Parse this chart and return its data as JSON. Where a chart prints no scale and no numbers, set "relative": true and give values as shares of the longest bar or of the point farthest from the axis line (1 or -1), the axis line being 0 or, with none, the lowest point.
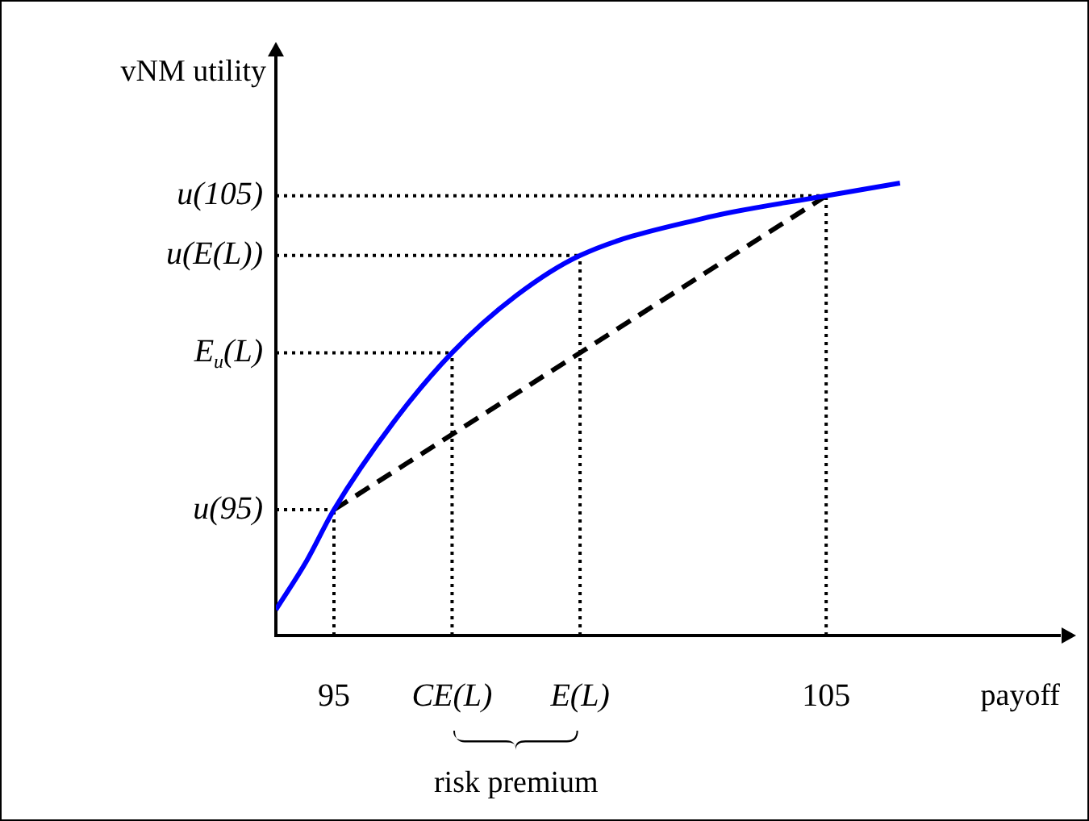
{
  "chart_data": {
    "type": "line",
    "xlabel": "payoff",
    "ylabel": "vNM utility",
    "relative": true,
    "marker": "none",
    "legend": false,
    "grid": false,
    "xlim": [
      93.82,
      109.75
    ],
    "xticks": [
      95,
      {
        "value": 97.4,
        "label": "CE(L)"
      },
      {
        "value": 100,
        "label": "E(L)"
      },
      105
    ],
    "series": [
      {
        "color": "#0000ff",
        "line_style": "solid",
        "x": [
          93.82,
          94.44,
          95,
          96.2,
          97.4,
          98.7,
          100,
          102.5,
          105,
          106.5
        ],
        "values": [
          0.057,
          0.164,
          0.278,
          0.47,
          0.625,
          0.751,
          0.84,
          0.922,
          0.972,
          1
        ]
      },
      {
        "color": "#000000",
        "line_style": "dashed",
        "x": [
          95,
          105
        ],
        "values": [
          0.278,
          0.972
        ]
      }
    ],
    "ref_lines": [
      {
        "axis": "y",
        "value": 0.278,
        "label": "u(95)",
        "line_style": "dotted"
      },
      {
        "axis": "y",
        "value": 0.625,
        "label": "E$_{u}$(L)",
        "line_style": "dotted"
      },
      {
        "axis": "y",
        "value": 0.84,
        "label": "u(E(L))",
        "line_style": "dotted"
      },
      {
        "axis": "y",
        "value": 0.972,
        "label": "u(105)",
        "line_style": "dotted"
      },
      {
        "axis": "x",
        "value": 95,
        "line_style": "dotted"
      },
      {
        "axis": "x",
        "value": 97.4,
        "line_style": "dotted"
      },
      {
        "axis": "x",
        "value": 100,
        "line_style": "dotted"
      },
      {
        "axis": "x",
        "value": 105,
        "line_style": "dotted"
      }
    ],
    "annotations": [
      "risk premium"
    ]
  }
}
